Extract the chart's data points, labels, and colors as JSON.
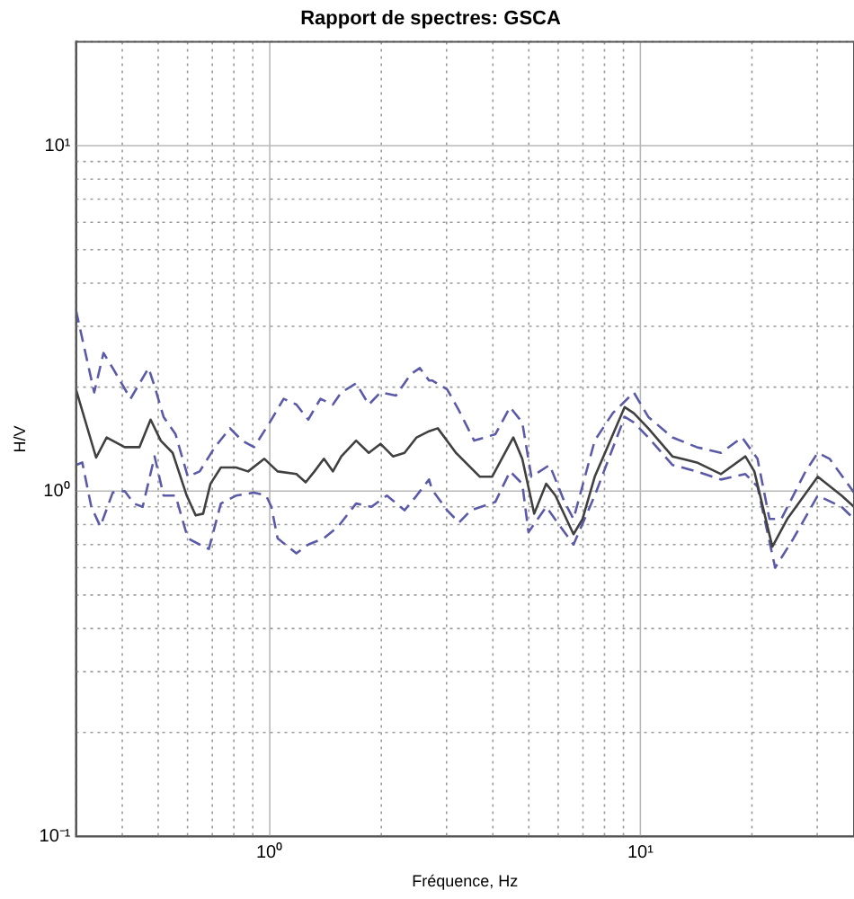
{
  "chart_data": {
    "type": "line",
    "title": "Rapport de spectres: GSCA",
    "xlabel": "Fréquence, Hz",
    "ylabel": "H/V",
    "log": "xy",
    "grid": true,
    "legend": false,
    "marker": "none",
    "xlim": [
      0.3,
      37.7
    ],
    "ylim": [
      0.1,
      20
    ],
    "xticks": [
      {
        "value": 0.3,
        "label": null
      },
      {
        "value": 0.4,
        "label": null
      },
      {
        "value": 0.5,
        "label": null
      },
      {
        "value": 0.6,
        "label": null
      },
      {
        "value": 0.7,
        "label": null
      },
      {
        "value": 0.8,
        "label": null
      },
      {
        "value": 0.9,
        "label": null
      },
      {
        "value": 1,
        "label": "10⁰"
      },
      {
        "value": 2,
        "label": null
      },
      {
        "value": 3,
        "label": null
      },
      {
        "value": 4,
        "label": null
      },
      {
        "value": 5,
        "label": null
      },
      {
        "value": 6,
        "label": null
      },
      {
        "value": 7,
        "label": null
      },
      {
        "value": 8,
        "label": null
      },
      {
        "value": 9,
        "label": null
      },
      {
        "value": 10,
        "label": "10¹"
      },
      {
        "value": 20,
        "label": null
      },
      {
        "value": 30,
        "label": null
      }
    ],
    "yticks": [
      {
        "value": 0.1,
        "label": "10⁻¹"
      },
      {
        "value": 0.2,
        "label": null
      },
      {
        "value": 0.3,
        "label": null
      },
      {
        "value": 0.4,
        "label": null
      },
      {
        "value": 0.5,
        "label": null
      },
      {
        "value": 0.6,
        "label": null
      },
      {
        "value": 0.7,
        "label": null
      },
      {
        "value": 0.8,
        "label": null
      },
      {
        "value": 0.9,
        "label": null
      },
      {
        "value": 1,
        "label": "10⁰"
      },
      {
        "value": 2,
        "label": null
      },
      {
        "value": 3,
        "label": null
      },
      {
        "value": 4,
        "label": null
      },
      {
        "value": 5,
        "label": null
      },
      {
        "value": 6,
        "label": null
      },
      {
        "value": 7,
        "label": null
      },
      {
        "value": 8,
        "label": null
      },
      {
        "value": 9,
        "label": null
      },
      {
        "value": 10,
        "label": "10¹"
      },
      {
        "value": 20,
        "label": null
      }
    ],
    "series": [
      {
        "color": "#404040",
        "line_style": "solid",
        "x": [
          0.3,
          0.34,
          0.363,
          0.406,
          0.445,
          0.477,
          0.508,
          0.547,
          0.597,
          0.631,
          0.661,
          0.692,
          0.738,
          0.811,
          0.874,
          0.967,
          1.05,
          1.18,
          1.25,
          1.32,
          1.4,
          1.48,
          1.56,
          1.71,
          1.85,
          1.99,
          2.15,
          2.31,
          2.49,
          2.69,
          2.84,
          3.18,
          3.69,
          3.98,
          4.54,
          4.8,
          5.17,
          5.57,
          5.9,
          6.6,
          6.98,
          7.53,
          9.07,
          9.6,
          10.5,
          12.2,
          14.2,
          16.5,
          19.2,
          20.3,
          22.7,
          24.9,
          30.1,
          34.9,
          37.7
        ],
        "values": [
          1.97,
          1.25,
          1.43,
          1.34,
          1.34,
          1.61,
          1.4,
          1.29,
          0.97,
          0.85,
          0.86,
          1.05,
          1.17,
          1.17,
          1.14,
          1.24,
          1.14,
          1.12,
          1.06,
          1.14,
          1.24,
          1.14,
          1.26,
          1.4,
          1.29,
          1.37,
          1.26,
          1.29,
          1.43,
          1.49,
          1.52,
          1.29,
          1.1,
          1.1,
          1.43,
          1.24,
          0.86,
          1.05,
          0.97,
          0.75,
          0.83,
          1.1,
          1.75,
          1.68,
          1.52,
          1.26,
          1.21,
          1.12,
          1.26,
          1.14,
          0.69,
          0.83,
          1.1,
          0.97,
          0.9
        ]
      },
      {
        "color": "#5a5aa8",
        "line_style": "dashed",
        "x": [
          0.3,
          0.336,
          0.356,
          0.377,
          0.421,
          0.471,
          0.489,
          0.517,
          0.557,
          0.601,
          0.647,
          0.711,
          0.781,
          0.842,
          0.907,
          1.0,
          1.09,
          1.18,
          1.27,
          1.37,
          1.48,
          1.56,
          1.71,
          1.85,
          1.99,
          2.19,
          2.4,
          2.54,
          2.69,
          2.74,
          3.01,
          3.24,
          3.56,
          4.06,
          4.45,
          4.8,
          5.08,
          5.69,
          6.24,
          6.6,
          7.53,
          8.42,
          9.6,
          10.5,
          12.2,
          14.2,
          16.5,
          18.8,
          20.7,
          22.3,
          24.0,
          27.9,
          30.1,
          32.4,
          37.7
        ],
        "values": [
          3.34,
          1.93,
          2.51,
          2.27,
          1.85,
          2.27,
          2.01,
          1.64,
          1.46,
          1.1,
          1.14,
          1.34,
          1.52,
          1.4,
          1.34,
          1.58,
          1.85,
          1.78,
          1.61,
          1.85,
          1.78,
          1.93,
          2.05,
          1.78,
          1.93,
          1.89,
          2.18,
          2.27,
          2.09,
          2.09,
          1.97,
          1.71,
          1.4,
          1.46,
          1.75,
          1.58,
          1.1,
          1.19,
          0.93,
          0.83,
          1.4,
          1.68,
          1.93,
          1.64,
          1.43,
          1.34,
          1.29,
          1.43,
          1.24,
          0.83,
          0.83,
          1.14,
          1.29,
          1.24,
          0.99
        ]
      },
      {
        "color": "#5a5aa8",
        "line_style": "dashed",
        "x": [
          0.3,
          0.312,
          0.33,
          0.349,
          0.377,
          0.406,
          0.43,
          0.454,
          0.489,
          0.517,
          0.557,
          0.601,
          0.647,
          0.685,
          0.738,
          0.811,
          0.907,
          0.978,
          1.01,
          1.05,
          1.18,
          1.27,
          1.4,
          1.53,
          1.71,
          1.88,
          2.07,
          2.31,
          2.49,
          2.69,
          2.74,
          3.01,
          3.24,
          3.49,
          4.06,
          4.45,
          4.8,
          4.99,
          5.57,
          6.24,
          6.6,
          7.53,
          9.07,
          9.6,
          10.5,
          12.2,
          14.2,
          16.5,
          19.2,
          20.7,
          23.1,
          25.9,
          30.1,
          34.9,
          37.7
        ],
        "values": [
          1.19,
          1.21,
          0.9,
          0.79,
          0.99,
          1.0,
          0.92,
          0.9,
          1.26,
          0.97,
          0.97,
          0.73,
          0.7,
          0.68,
          0.92,
          0.97,
          0.99,
          0.97,
          0.9,
          0.73,
          0.66,
          0.7,
          0.73,
          0.79,
          0.92,
          0.9,
          0.97,
          0.88,
          0.97,
          1.08,
          1.01,
          0.88,
          0.81,
          0.88,
          0.93,
          1.14,
          1.05,
          0.76,
          0.9,
          0.76,
          0.7,
          0.97,
          1.64,
          1.58,
          1.43,
          1.19,
          1.14,
          1.08,
          1.12,
          1.03,
          0.6,
          0.73,
          0.97,
          0.9,
          0.83
        ]
      }
    ]
  }
}
